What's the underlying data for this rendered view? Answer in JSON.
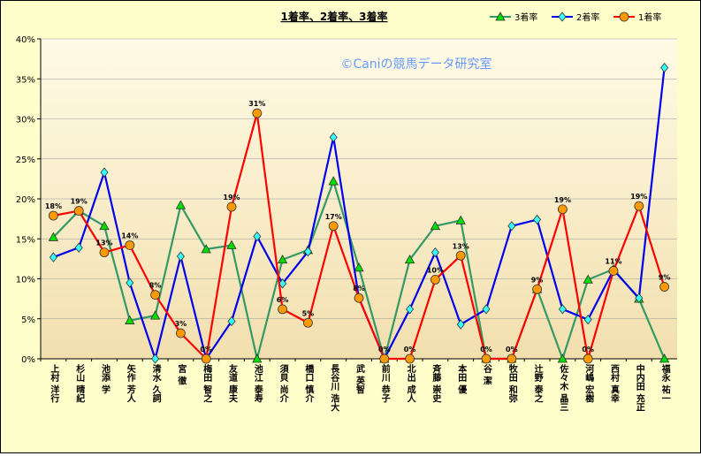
{
  "chart_data": {
    "type": "line",
    "title": "1着率、2着率、3着率",
    "watermark": "©Caniの競馬データ研究室",
    "xlabel": "",
    "ylabel": "",
    "ylim": [
      0,
      40
    ],
    "yticks": [
      "0%",
      "5%",
      "10%",
      "15%",
      "20%",
      "25%",
      "30%",
      "35%",
      "40%"
    ],
    "grid": true,
    "legend_position": "top-right",
    "categories": [
      "上村 洋行",
      "杉山 晴紀",
      "池添 学",
      "矢作 芳人",
      "清水 久詞",
      "宮 徹",
      "梅田 智之",
      "友道 康夫",
      "池江 泰寿",
      "須貝 尚介",
      "橋口 慎介",
      "長谷川 浩大",
      "武 英智",
      "前川 恭子",
      "北出 成人",
      "斉藤 崇史",
      "本田 優",
      "谷 潔",
      "牧田 和弥",
      "辻野 泰之",
      "佐々木 晶三",
      "河嶋 宏樹",
      "西村 真幸",
      "中内田 充正",
      "福永 祐一"
    ],
    "series": [
      {
        "name": "3着率",
        "color": "#339966",
        "marker": "triangle",
        "marker_fill": "#00dd00",
        "values": [
          15.2,
          18.5,
          16.6,
          4.8,
          5.4,
          19.2,
          13.7,
          14.2,
          0,
          12.4,
          13.6,
          22.2,
          11.4,
          0,
          12.4,
          16.6,
          17.3,
          0,
          0,
          8.7,
          0,
          9.9,
          11.2,
          7.5,
          0
        ]
      },
      {
        "name": "2着率",
        "color": "#0000ee",
        "marker": "diamond",
        "marker_fill": "#33ffff",
        "values": [
          12.7,
          13.9,
          23.3,
          9.5,
          0,
          12.8,
          0,
          4.7,
          15.3,
          9.4,
          13.4,
          27.7,
          7.6,
          0,
          6.2,
          13.3,
          4.3,
          6.2,
          16.6,
          17.4,
          6.2,
          4.9,
          11.1,
          7.6,
          36.4
        ]
      },
      {
        "name": "1着率",
        "color": "#ff0000",
        "marker": "circle",
        "marker_fill": "#ff9900",
        "values": [
          17.9,
          18.5,
          13.3,
          14.2,
          8.0,
          3.2,
          0,
          19.0,
          30.7,
          6.2,
          4.5,
          16.6,
          7.6,
          0,
          0,
          9.9,
          12.9,
          0,
          0,
          8.7,
          18.7,
          0,
          11.0,
          19.1,
          9.0
        ],
        "labels": [
          "18%",
          "19%",
          "13%",
          "14%",
          "8%",
          "3%",
          "0%",
          "19%",
          "31%",
          "6%",
          "5%",
          "17%",
          "8%",
          "0%",
          "0%",
          "10%",
          "13%",
          "0%",
          "0%",
          "9%",
          "19%",
          "0%",
          "11%",
          "19%",
          "9%"
        ]
      }
    ],
    "legend_order": [
      0,
      1,
      2
    ],
    "colors": {
      "frame_bg": "#ffffcc",
      "plot_top": "#fffbe6",
      "plot_bottom": "#f2dfae",
      "watermark": "#6699ff"
    }
  }
}
